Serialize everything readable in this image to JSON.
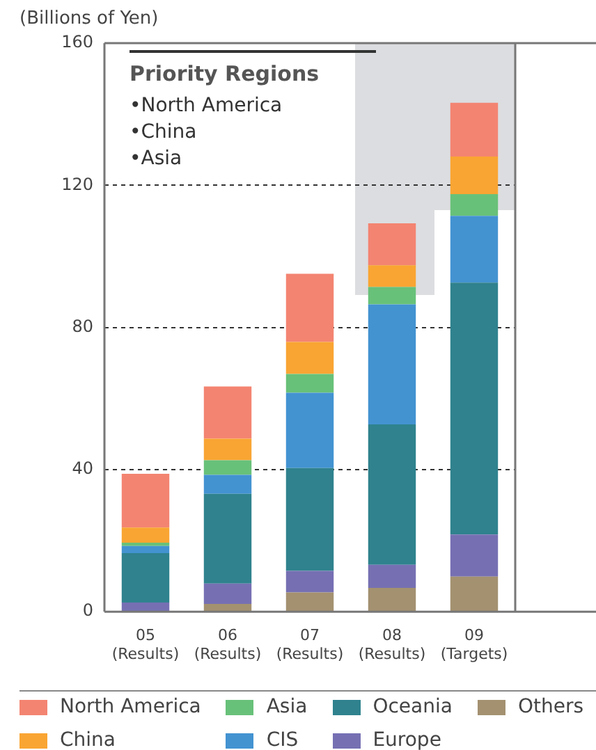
{
  "chart_data": {
    "type": "bar",
    "stacked": true,
    "ylabel": "(Billions of Yen)",
    "categories": [
      "05\n(Results)",
      "06\n(Results)",
      "07\n(Results)",
      "08\n(Results)",
      "09\n(Targets)"
    ],
    "series": [
      {
        "name": "Others",
        "color": "#a39170",
        "values": [
          0,
          2.2,
          5.4,
          6.7,
          9.9
        ]
      },
      {
        "name": "Europe",
        "color": "#7670b3",
        "values": [
          2.6,
          5.7,
          6.1,
          6.5,
          11.8
        ]
      },
      {
        "name": "Oceania",
        "color": "#2f828e",
        "values": [
          13.9,
          25.3,
          28.9,
          39.5,
          70.9
        ]
      },
      {
        "name": "CIS",
        "color": "#4393d1",
        "values": [
          2.0,
          5.3,
          21.2,
          33.8,
          18.8
        ]
      },
      {
        "name": "Asia",
        "color": "#68c179",
        "values": [
          0.9,
          4.1,
          5.3,
          4.9,
          6.1
        ]
      },
      {
        "name": "China",
        "color": "#f9a533",
        "values": [
          4.3,
          6.1,
          9.0,
          6.1,
          10.6
        ]
      },
      {
        "name": "North America",
        "color": "#f38471",
        "values": [
          15.1,
          14.7,
          19.2,
          11.8,
          15.1
        ]
      }
    ],
    "ylim": [
      0,
      160
    ],
    "yticks": [
      0,
      40,
      80,
      120,
      160
    ],
    "grid": "y",
    "legend": "bottom",
    "annotations": [
      "Priority Regions",
      "•North America",
      "•China",
      "•Asia"
    ]
  }
}
